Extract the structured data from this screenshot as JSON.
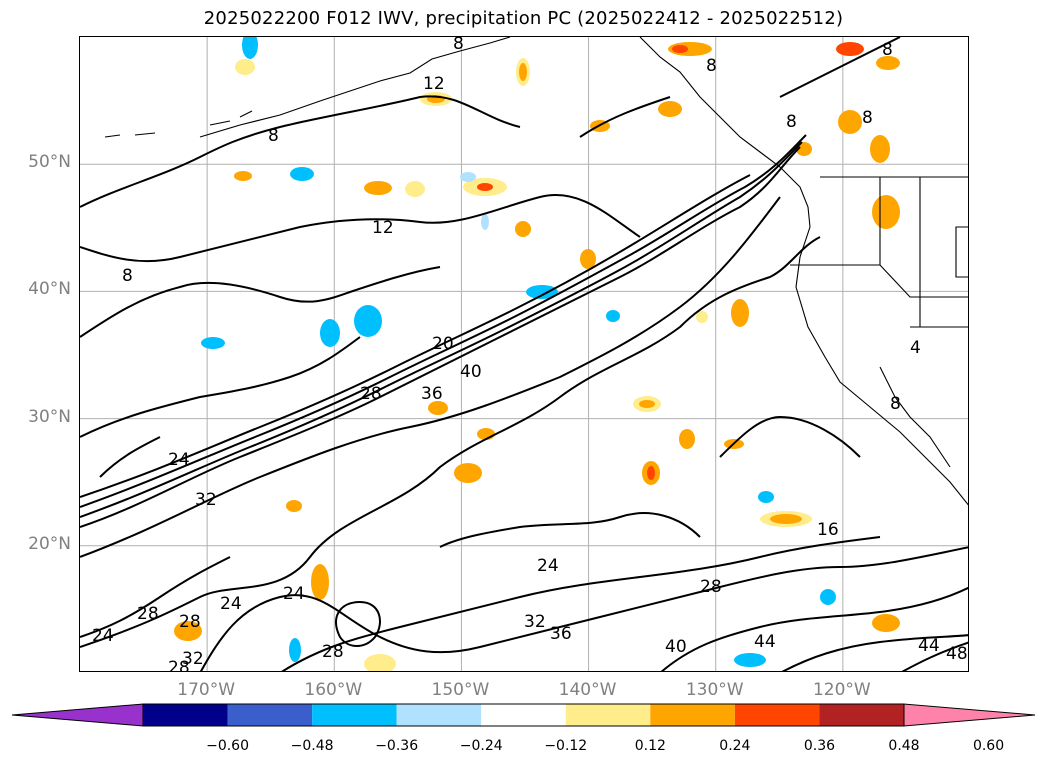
{
  "title": "2025022200 F012 IWV, precipitation PC (2025022412 - 2025022512)",
  "map": {
    "lat_ticks": [
      {
        "label": "50°N",
        "lat": 50
      },
      {
        "label": "40°N",
        "lat": 40
      },
      {
        "label": "30°N",
        "lat": 30
      },
      {
        "label": "20°N",
        "lat": 20
      }
    ],
    "lon_ticks": [
      {
        "label": "170°W",
        "lon": -170
      },
      {
        "label": "160°W",
        "lon": -160
      },
      {
        "label": "150°W",
        "lon": -150
      },
      {
        "label": "140°W",
        "lon": -140
      },
      {
        "label": "130°W",
        "lon": -130
      },
      {
        "label": "120°W",
        "lon": -120
      }
    ],
    "extent": {
      "lon_min": -180,
      "lon_max": -110,
      "lat_min": 10,
      "lat_max": 60
    },
    "contour_labels": [
      "8",
      "12",
      "8",
      "12",
      "8",
      "8",
      "8",
      "8",
      "8",
      "20",
      "40",
      "36",
      "28",
      "24",
      "32",
      "16",
      "24",
      "28",
      "24",
      "24",
      "28",
      "28",
      "28",
      "32",
      "28",
      "24",
      "32",
      "36",
      "40",
      "44",
      "44",
      "48",
      "4",
      "8"
    ],
    "grid_color": "#b0b0b0"
  },
  "colorbar": {
    "ticks": [
      "−0.60",
      "−0.48",
      "−0.36",
      "−0.24",
      "−0.12",
      "0.12",
      "0.24",
      "0.36",
      "0.48",
      "0.60"
    ],
    "colors": [
      "#9932cc",
      "#00008b",
      "#3a5fcd",
      "#00bfff",
      "#b0e2ff",
      "#ffffff",
      "#ffec8b",
      "#ffa500",
      "#ff4500",
      "#b22222",
      "#ff82ab"
    ]
  }
}
